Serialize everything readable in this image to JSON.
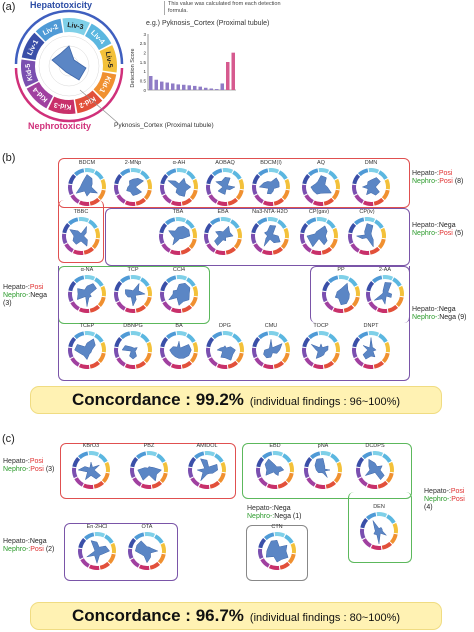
{
  "panel_a": {
    "label": "(a)",
    "hepatotoxicity": "Hepatotoxicity",
    "nephrotoxicity": "Nephrotoxicity",
    "liver_segments": [
      "Liv-1",
      "Liv-2",
      "Liv-3",
      "Liv-4",
      "Liv-5"
    ],
    "kidney_segments": [
      "Kid-1",
      "Kid-2",
      "Kid-3",
      "Kid-4",
      "Kid-5"
    ],
    "callout_label": "Pyknosis_Cortex (Proximal tubule)",
    "note": "This value was calculated from each detection formula.",
    "chart_title": "e.g.) Pyknosis_Cortex (Proximal tubule)",
    "chart_data": {
      "type": "bar",
      "ylabel": "Detection Score",
      "ylim": [
        0,
        3
      ],
      "values": [
        0.75,
        0.55,
        0.45,
        0.4,
        0.35,
        0.3,
        0.28,
        0.25,
        0.22,
        0.18,
        0.12,
        0.08,
        0.05,
        0.35,
        1.5,
        2.0
      ],
      "yticks": [
        "0",
        "0.5",
        "1",
        "1.5",
        "2",
        "2.5",
        "3"
      ]
    }
  },
  "panel_b": {
    "label": "(b)",
    "groups": {
      "pp": {
        "hepato": "Hepato-:",
        "hepato_val": "Posi",
        "nephro": "Nephro-:",
        "nephro_val": "Posi",
        "count": "(8)"
      },
      "np": {
        "hepato": "Hepato-:",
        "hepato_val": "Nega",
        "nephro": "Nephro-:",
        "nephro_val": "Posi",
        "count": "(5)"
      },
      "pn": {
        "hepato": "Hepato-:",
        "hepato_val": "Posi",
        "nephro": "Nephro-:",
        "nephro_val": "Nega",
        "count": "(3)"
      },
      "nn": {
        "hepato": "Hepato-:",
        "hepato_val": "Nega",
        "nephro": "Nephro-:",
        "nephro_val": "Nega",
        "count": "(9)"
      }
    },
    "chemicals": {
      "pp": [
        "BDCM",
        "2-MNp",
        "α-AH",
        "AOBAQ",
        "BDCM(I)",
        "AQ",
        "DMN",
        "TBBC"
      ],
      "np": [
        "TBA",
        "EBA",
        "Na3-NTA·H2O",
        "CP(gav)",
        "CP(iv)"
      ],
      "pn": [
        "α-NA",
        "TCP",
        "CCl4"
      ],
      "nn": [
        "PP",
        "2-AA",
        "TCEP",
        "DBNPG",
        "BA",
        "DPG",
        "CMU",
        "TOCP",
        "DNPT"
      ]
    },
    "concordance": "Concordance : 99.2%",
    "individual": "(individual findings : 96~100%)"
  },
  "panel_c": {
    "label": "(c)",
    "groups": {
      "pp": {
        "hepato": "Hepato-:",
        "hepato_val": "Posi",
        "nephro": "Nephro-:",
        "nephro_val": "Posi",
        "count": "(3)"
      },
      "pp2": {
        "hepato": "Hepato-:",
        "hepato_val": "Posi",
        "nephro": "Nephro-:",
        "nephro_val": "Posi",
        "count": "(4)"
      },
      "np": {
        "hepato": "Hepato-:",
        "hepato_val": "Nega",
        "nephro": "Nephro-:",
        "nephro_val": "Posi",
        "count": "(2)"
      },
      "nn": {
        "hepato": "Hepato-:",
        "hepato_val": "Nega",
        "nephro": "Nephro-:",
        "nephro_val": "Nega",
        "count": "(1)"
      }
    },
    "chemicals": {
      "pp": [
        "KBrO3",
        "PBZ",
        "AMIDOL"
      ],
      "pp2": [
        "EBD",
        "pNA",
        "DCDPS",
        "DEN"
      ],
      "np": [
        "En·2HCl",
        "OTA"
      ],
      "nn": [
        "CTN"
      ]
    },
    "concordance": "Concordance : 96.7%",
    "individual": "(individual findings : 80~100%)"
  },
  "colors": {
    "posi": "#e03030",
    "nega_nephro": "#2a9a2a",
    "box_red": "#e05050",
    "box_purple": "#7a55a8",
    "box_green": "#5cb85c",
    "box_gray": "#888888",
    "radar_fill": "#5b86c5",
    "concord_bg": "#fff2b3"
  }
}
